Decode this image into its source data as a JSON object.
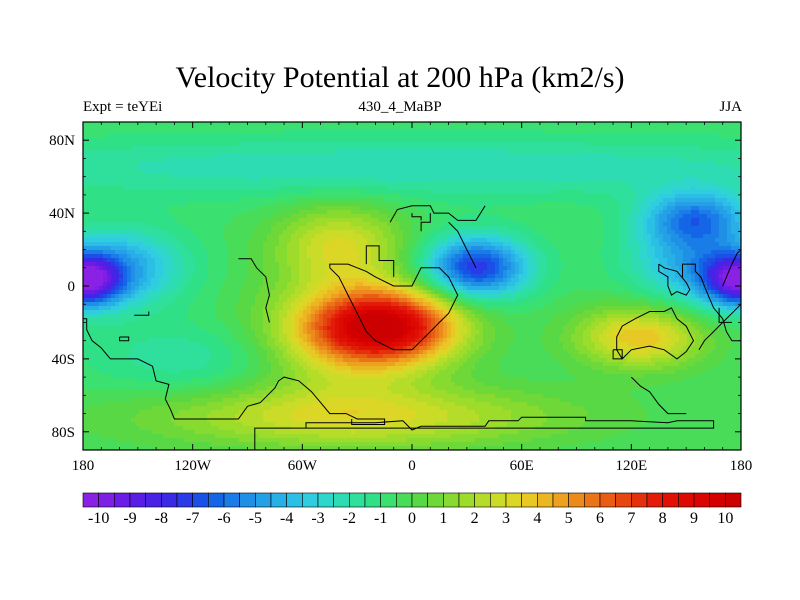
{
  "chart_data": {
    "type": "heatmap",
    "title": "Velocity Potential at 200 hPa (km2/s)",
    "left_label": "Expt = teYEi",
    "center_label": "430_4_MaBP",
    "right_label": "JJA",
    "x_range": [
      -180,
      180
    ],
    "y_range": [
      -90,
      90
    ],
    "x_ticks": [
      {
        "value": -180,
        "label": "180"
      },
      {
        "value": -120,
        "label": "120W"
      },
      {
        "value": -60,
        "label": "60W"
      },
      {
        "value": 0,
        "label": "0"
      },
      {
        "value": 60,
        "label": "60E"
      },
      {
        "value": 120,
        "label": "120E"
      },
      {
        "value": 180,
        "label": "180"
      }
    ],
    "y_ticks": [
      {
        "value": 80,
        "label": "80N"
      },
      {
        "value": 40,
        "label": "40N"
      },
      {
        "value": 0,
        "label": "0"
      },
      {
        "value": -40,
        "label": "40S"
      },
      {
        "value": -80,
        "label": "80S"
      }
    ],
    "colorbar": {
      "min": -10.5,
      "max": 10.5,
      "step": 0.5,
      "labels": [
        "-10",
        "-9",
        "-8",
        "-7",
        "-6",
        "-5",
        "-4",
        "-3",
        "-2",
        "-1",
        "0",
        "1",
        "2",
        "3",
        "4",
        "5",
        "6",
        "7",
        "8",
        "9",
        "10"
      ],
      "colors": [
        "#8a22e6",
        "#7f1fe6",
        "#6b1ce6",
        "#5a1de6",
        "#4a22e6",
        "#3a2ae6",
        "#2a3ae6",
        "#1a50e6",
        "#1466e6",
        "#1a7ce6",
        "#2090e6",
        "#24a0e6",
        "#28b0e6",
        "#2cbfe6",
        "#30cce0",
        "#2ed6cc",
        "#2edcb4",
        "#2ee09c",
        "#30e086",
        "#3ae070",
        "#48dc58",
        "#58d844",
        "#6ed838",
        "#86da30",
        "#9edc2c",
        "#b6dc2a",
        "#cadc28",
        "#dcd626",
        "#e8c824",
        "#ecb622",
        "#eea020",
        "#ec8a1c",
        "#ea7418",
        "#e85c14",
        "#e64610",
        "#e4300c",
        "#e21c08",
        "#e01004",
        "#dd0a02",
        "#da0402",
        "#d40000",
        "#cc0000"
      ]
    },
    "anomalies": [
      {
        "name": "africa-maximum",
        "lon": -15,
        "lat": -22,
        "amplitude": 9.5,
        "sigma_lon": 28,
        "sigma_lat": 14
      },
      {
        "name": "south-atlantic-lobe",
        "lon": -40,
        "lat": -30,
        "amplitude": 3.0,
        "sigma_lon": 35,
        "sigma_lat": 22
      },
      {
        "name": "north-atlantic-lobe",
        "lon": -40,
        "lat": 22,
        "amplitude": 3.5,
        "sigma_lon": 25,
        "sigma_lat": 16
      },
      {
        "name": "southern-ocean-belt",
        "lon": -30,
        "lat": -72,
        "amplitude": 3.5,
        "sigma_lon": 80,
        "sigma_lat": 12
      },
      {
        "name": "australia-maximum",
        "lon": 125,
        "lat": -28,
        "amplitude": 4.5,
        "sigma_lon": 25,
        "sigma_lat": 12
      },
      {
        "name": "asia-minimum",
        "lon": 35,
        "lat": 10,
        "amplitude": -7.0,
        "sigma_lon": 20,
        "sigma_lat": 12
      },
      {
        "name": "pacific-minimum-east",
        "lon": 180,
        "lat": 3,
        "amplitude": -8.5,
        "sigma_lon": 14,
        "sigma_lat": 10
      },
      {
        "name": "pacific-minimum-west",
        "lon": -180,
        "lat": 3,
        "amplitude": -8.5,
        "sigma_lon": 14,
        "sigma_lat": 10
      },
      {
        "name": "west-pacific-trough",
        "lon": 155,
        "lat": 15,
        "amplitude": -4.0,
        "sigma_lon": 25,
        "sigma_lat": 18
      },
      {
        "name": "north-pacific-trough",
        "lon": 155,
        "lat": 38,
        "amplitude": -4.0,
        "sigma_lon": 20,
        "sigma_lat": 10
      },
      {
        "name": "east-pacific-trough",
        "lon": -160,
        "lat": 10,
        "amplitude": -4.0,
        "sigma_lon": 25,
        "sigma_lat": 15
      },
      {
        "name": "high-latitude-band",
        "lon": 0,
        "lat": 65,
        "amplitude": -2.0,
        "sigma_lon": 200,
        "sigma_lat": 12
      },
      {
        "name": "midlat-south-band",
        "lon": -120,
        "lat": -40,
        "amplitude": -1.5,
        "sigma_lon": 40,
        "sigma_lat": 14
      }
    ],
    "background_value": -0.5,
    "coastlines": [
      [
        [
          -86,
          -90
        ],
        [
          -86,
          -78
        ],
        [
          -58,
          -78
        ],
        [
          -58,
          -75
        ],
        [
          -20,
          -75
        ],
        [
          -5,
          -74
        ],
        [
          0,
          -79
        ],
        [
          5,
          -77
        ],
        [
          40,
          -77
        ],
        [
          42,
          -74
        ],
        [
          58,
          -74
        ],
        [
          60,
          -72
        ],
        [
          75,
          -72
        ],
        [
          95,
          -72
        ],
        [
          95,
          -74
        ],
        [
          120,
          -74
        ],
        [
          140,
          -75
        ],
        [
          145,
          -74
        ],
        [
          165,
          -74
        ],
        [
          165,
          -78
        ],
        [
          -86,
          -78
        ]
      ],
      [
        [
          -144,
          -14
        ],
        [
          -144,
          -16
        ],
        [
          -152,
          -16
        ]
      ],
      [
        [
          -160,
          -28
        ],
        [
          -155,
          -28
        ],
        [
          -155,
          -30
        ],
        [
          -160,
          -30
        ],
        [
          -160,
          -28
        ]
      ],
      [
        [
          -180,
          -18
        ],
        [
          -178,
          -18
        ],
        [
          -178,
          -24
        ],
        [
          -175,
          -30
        ],
        [
          -170,
          -34
        ],
        [
          -165,
          -40
        ],
        [
          -150,
          -40
        ],
        [
          -142,
          -44
        ],
        [
          -140,
          -52
        ],
        [
          -133,
          -54
        ],
        [
          -135,
          -62
        ],
        [
          -132,
          -68
        ],
        [
          -130,
          -73
        ],
        [
          -95,
          -73
        ],
        [
          -90,
          -66
        ],
        [
          -83,
          -64
        ],
        [
          -75,
          -56
        ],
        [
          -73,
          -52
        ],
        [
          -70,
          -50
        ],
        [
          -62,
          -52
        ],
        [
          -55,
          -58
        ],
        [
          -50,
          -64
        ],
        [
          -45,
          -70
        ],
        [
          -36,
          -70
        ],
        [
          -30,
          -73
        ],
        [
          -15,
          -73
        ],
        [
          -15,
          -76
        ],
        [
          -33,
          -76
        ],
        [
          -33,
          -73
        ]
      ],
      [
        [
          -95,
          15
        ],
        [
          -88,
          15
        ],
        [
          -85,
          10
        ],
        [
          -80,
          5
        ],
        [
          -78,
          -5
        ],
        [
          -80,
          -12
        ],
        [
          -78,
          -20
        ]
      ],
      [
        [
          -45,
          10
        ],
        [
          -40,
          5
        ],
        [
          -35,
          -5
        ],
        [
          -30,
          -15
        ],
        [
          -25,
          -25
        ],
        [
          -20,
          -30
        ],
        [
          -10,
          -35
        ],
        [
          0,
          -35
        ],
        [
          5,
          -30
        ],
        [
          10,
          -25
        ],
        [
          15,
          -20
        ],
        [
          20,
          -15
        ],
        [
          25,
          -5
        ],
        [
          20,
          5
        ],
        [
          15,
          10
        ],
        [
          5,
          10
        ],
        [
          0,
          0
        ],
        [
          -10,
          0
        ],
        [
          -20,
          5
        ],
        [
          -25,
          8
        ],
        [
          -30,
          10
        ],
        [
          -35,
          12
        ],
        [
          -45,
          12
        ],
        [
          -45,
          10
        ]
      ],
      [
        [
          -25,
          12
        ],
        [
          -25,
          22
        ],
        [
          -18,
          22
        ],
        [
          -18,
          14
        ],
        [
          -10,
          14
        ],
        [
          -10,
          5
        ]
      ],
      [
        [
          -12,
          35
        ],
        [
          -8,
          42
        ],
        [
          0,
          44
        ],
        [
          10,
          44
        ],
        [
          12,
          40
        ],
        [
          20,
          40
        ],
        [
          25,
          36
        ],
        [
          35,
          36
        ],
        [
          40,
          44
        ]
      ],
      [
        [
          0,
          40
        ],
        [
          0,
          38
        ],
        [
          5,
          38
        ],
        [
          5,
          36
        ]
      ],
      [
        [
          10,
          40
        ],
        [
          10,
          35
        ],
        [
          5,
          35
        ],
        [
          5,
          30
        ]
      ],
      [
        [
          20,
          35
        ],
        [
          25,
          30
        ],
        [
          30,
          20
        ],
        [
          35,
          10
        ]
      ],
      [
        [
          120,
          -50
        ],
        [
          125,
          -55
        ],
        [
          130,
          -58
        ],
        [
          135,
          -65
        ],
        [
          140,
          -70
        ],
        [
          150,
          -70
        ]
      ],
      [
        [
          115,
          -40
        ],
        [
          112,
          -35
        ],
        [
          112,
          -28
        ],
        [
          115,
          -22
        ],
        [
          122,
          -18
        ],
        [
          130,
          -14
        ],
        [
          138,
          -14
        ],
        [
          142,
          -12
        ],
        [
          145,
          -18
        ],
        [
          150,
          -22
        ],
        [
          152,
          -26
        ],
        [
          154,
          -30
        ],
        [
          150,
          -36
        ],
        [
          145,
          -40
        ],
        [
          138,
          -35
        ],
        [
          130,
          -33
        ],
        [
          120,
          -35
        ],
        [
          115,
          -40
        ]
      ],
      [
        [
          110,
          -35
        ],
        [
          110,
          -40
        ],
        [
          115,
          -40
        ],
        [
          115,
          -35
        ],
        [
          110,
          -35
        ]
      ],
      [
        [
          135,
          12
        ],
        [
          135,
          8
        ],
        [
          140,
          5
        ],
        [
          140,
          0
        ],
        [
          142,
          -5
        ],
        [
          145,
          -3
        ],
        [
          150,
          -5
        ],
        [
          152,
          -2
        ],
        [
          150,
          2
        ],
        [
          145,
          8
        ],
        [
          138,
          10
        ],
        [
          135,
          12
        ]
      ],
      [
        [
          148,
          5
        ],
        [
          148,
          12
        ],
        [
          155,
          12
        ],
        [
          155,
          8
        ],
        [
          158,
          5
        ],
        [
          160,
          0
        ],
        [
          162,
          -5
        ],
        [
          165,
          -12
        ],
        [
          170,
          -18
        ],
        [
          172,
          -25
        ],
        [
          175,
          -30
        ],
        [
          180,
          -30
        ]
      ],
      [
        [
          157,
          -35
        ],
        [
          160,
          -30
        ],
        [
          165,
          -25
        ],
        [
          170,
          -20
        ],
        [
          175,
          -15
        ],
        [
          180,
          -10
        ]
      ],
      [
        [
          168,
          -12
        ],
        [
          168,
          -20
        ],
        [
          175,
          -20
        ]
      ],
      [
        [
          180,
          20
        ],
        [
          178,
          18
        ],
        [
          175,
          12
        ],
        [
          172,
          5
        ],
        [
          170,
          0
        ]
      ]
    ]
  }
}
